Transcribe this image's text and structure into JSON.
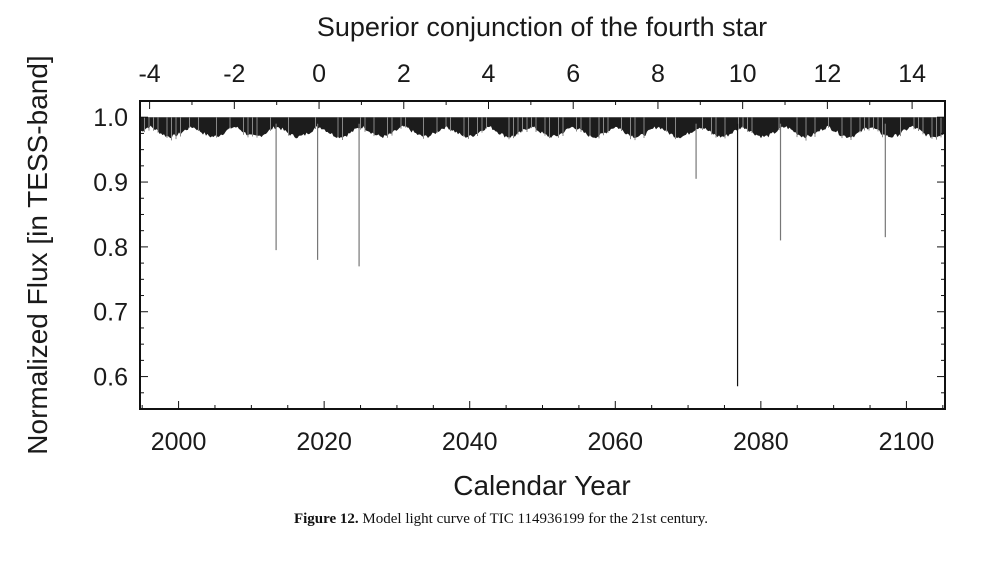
{
  "chart_data": {
    "type": "line",
    "title": "Superior conjunction of the fourth star",
    "xlabel": "Calendar Year",
    "ylabel": "Normalized Flux [in TESS-band]",
    "xlim": [
      1994.7,
      2105.3
    ],
    "ylim": [
      0.55,
      1.025
    ],
    "x_ticks": [
      2000,
      2020,
      2040,
      2060,
      2080,
      2100
    ],
    "y_ticks": [
      0.6,
      0.7,
      0.8,
      0.9,
      1.0
    ],
    "y_tick_labels": [
      "0.6",
      "0.7",
      "0.8",
      "0.9",
      "1.0"
    ],
    "top_axis": {
      "label": "Superior conjunction of the fourth star",
      "ticks": [
        -4,
        -2,
        0,
        2,
        4,
        6,
        8,
        10,
        12,
        14
      ],
      "cycle_zero_year": 2019.3,
      "period_years": 5.82
    },
    "baseline": {
      "max_flux": 1.0,
      "min_flux_range": [
        0.97,
        0.985
      ],
      "modulation_period_years": 5.82
    },
    "eclipses": [
      {
        "year": 2013.4,
        "min_flux": 0.795
      },
      {
        "year": 2019.1,
        "min_flux": 0.78
      },
      {
        "year": 2024.8,
        "min_flux": 0.77
      },
      {
        "year": 2071.1,
        "min_flux": 0.905
      },
      {
        "year": 2076.8,
        "min_flux": 0.585
      },
      {
        "year": 2082.7,
        "min_flux": 0.81
      },
      {
        "year": 2097.1,
        "min_flux": 0.815
      }
    ],
    "grid": false
  },
  "caption": {
    "label": "Figure 12.",
    "text": "Model light curve of TIC 114936199 for the 21st century."
  }
}
